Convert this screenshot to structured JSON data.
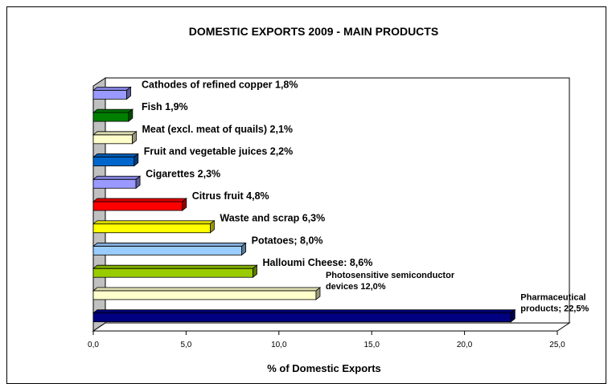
{
  "chart_data": {
    "type": "bar",
    "orientation": "horizontal",
    "title": "DOMESTIC EXPORTS 2009 - MAIN PRODUCTS",
    "xlabel": "% of Domestic Exports",
    "ylabel": "",
    "xlim": [
      0,
      25
    ],
    "xticks": [
      "0,0",
      "5,0",
      "10,0",
      "15,0",
      "20,0",
      "25,0"
    ],
    "bars": [
      {
        "label_lines": [
          "Pharmaceutical",
          "products; 22,5%"
        ],
        "value": 22.5,
        "color": "#000080"
      },
      {
        "label_lines": [
          "Photosensitive semiconductor",
          "devices 12,0%"
        ],
        "value": 12.0,
        "color": "#FFFFCC"
      },
      {
        "label_lines": [
          "Halloumi Cheese: 8,6%"
        ],
        "value": 8.6,
        "color": "#99CC00"
      },
      {
        "label_lines": [
          "Potatoes; 8,0%"
        ],
        "value": 8.0,
        "color": "#99CCFF"
      },
      {
        "label_lines": [
          "Waste and scrap 6,3%"
        ],
        "value": 6.3,
        "color": "#FFFF00"
      },
      {
        "label_lines": [
          "Citrus fruit 4,8%"
        ],
        "value": 4.8,
        "color": "#FF0000"
      },
      {
        "label_lines": [
          "Cigarettes 2,3%"
        ],
        "value": 2.3,
        "color": "#9999FF"
      },
      {
        "label_lines": [
          "Fruit and vegetable juices 2,2%"
        ],
        "value": 2.2,
        "color": "#0066CC"
      },
      {
        "label_lines": [
          "Meat (excl. meat of quails) 2,1%"
        ],
        "value": 2.1,
        "color": "#FFFFCC"
      },
      {
        "label_lines": [
          "Fish 1,9%"
        ],
        "value": 1.9,
        "color": "#008000"
      },
      {
        "label_lines": [
          "Cathodes of refined copper 1,8%"
        ],
        "value": 1.8,
        "color": "#9999FF"
      }
    ]
  }
}
